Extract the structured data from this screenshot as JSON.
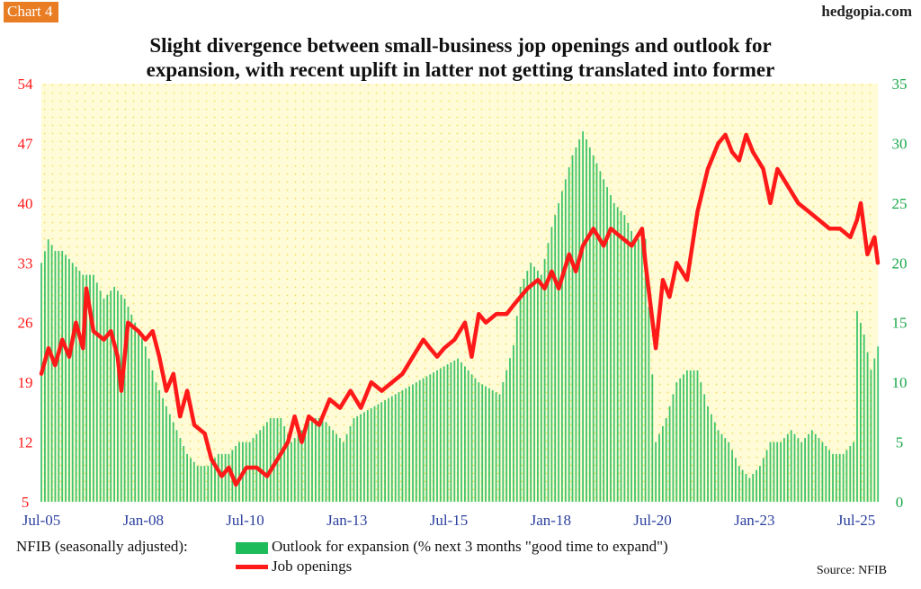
{
  "header": {
    "chart_label": "Chart 4",
    "site": "hedgopia.com",
    "title_line1": "Slight divergence between small-business jop openings and outlook for",
    "title_line2": "expansion, with recent uplift in latter not getting translated into former"
  },
  "legend": {
    "lead": "NFIB (seasonally adjusted):",
    "bar_label": "Outlook for expansion (% next 3 months \"good time to expand\")",
    "line_label": "Job openings"
  },
  "source": "Source: NFIB",
  "colors": {
    "bar": "#1dbb5a",
    "line": "#ff1a1a",
    "left_axis": "#ff1a1a",
    "right_axis": "#1aa84a",
    "plot_bg": "#fffbd6",
    "dots": "#f2df5a"
  },
  "chart_data": {
    "type": "bar+line",
    "x_start": "2005-07",
    "x_end": "2025-07",
    "x_ticks": [
      "Jul-05",
      "Jan-08",
      "Jul-10",
      "Jan-13",
      "Jul-15",
      "Jan-18",
      "Jul-20",
      "Jan-23",
      "Jul-25"
    ],
    "left_axis": {
      "label": "Job openings",
      "min": 5,
      "max": 54,
      "ticks": [
        5,
        12,
        19,
        26,
        33,
        40,
        47,
        54
      ]
    },
    "right_axis": {
      "label": "Outlook for expansion",
      "min": 0,
      "max": 35,
      "ticks": [
        0,
        5,
        10,
        15,
        20,
        25,
        30,
        35
      ]
    },
    "series": [
      {
        "name": "Outlook for expansion (% next 3 months \"good time to expand\")",
        "type": "bar",
        "axis": "right",
        "anchors": [
          [
            2005.5,
            20
          ],
          [
            2005.67,
            22
          ],
          [
            2005.83,
            21
          ],
          [
            2006.0,
            21
          ],
          [
            2006.25,
            20
          ],
          [
            2006.5,
            19
          ],
          [
            2006.75,
            19
          ],
          [
            2007.0,
            17
          ],
          [
            2007.25,
            18
          ],
          [
            2007.5,
            17
          ],
          [
            2007.75,
            15
          ],
          [
            2008.0,
            13
          ],
          [
            2008.25,
            10
          ],
          [
            2008.5,
            8
          ],
          [
            2008.75,
            6
          ],
          [
            2009.0,
            4
          ],
          [
            2009.25,
            3
          ],
          [
            2009.5,
            3
          ],
          [
            2009.75,
            4
          ],
          [
            2010.0,
            4
          ],
          [
            2010.25,
            5
          ],
          [
            2010.5,
            5
          ],
          [
            2010.75,
            6
          ],
          [
            2011.0,
            7
          ],
          [
            2011.25,
            7
          ],
          [
            2011.5,
            5
          ],
          [
            2011.75,
            6
          ],
          [
            2012.0,
            7
          ],
          [
            2012.25,
            7
          ],
          [
            2012.5,
            6
          ],
          [
            2012.75,
            5
          ],
          [
            2013.0,
            7
          ],
          [
            2013.5,
            8
          ],
          [
            2014.0,
            9
          ],
          [
            2014.5,
            10
          ],
          [
            2015.0,
            11
          ],
          [
            2015.5,
            12
          ],
          [
            2016.0,
            10
          ],
          [
            2016.5,
            9
          ],
          [
            2016.83,
            13
          ],
          [
            2017.0,
            18
          ],
          [
            2017.25,
            20
          ],
          [
            2017.5,
            19
          ],
          [
            2017.75,
            23
          ],
          [
            2018.0,
            26
          ],
          [
            2018.25,
            29
          ],
          [
            2018.5,
            31
          ],
          [
            2018.75,
            29
          ],
          [
            2019.0,
            27
          ],
          [
            2019.25,
            25
          ],
          [
            2019.5,
            24
          ],
          [
            2019.75,
            22
          ],
          [
            2020.0,
            22
          ],
          [
            2020.25,
            5
          ],
          [
            2020.5,
            7
          ],
          [
            2020.75,
            10
          ],
          [
            2021.0,
            11
          ],
          [
            2021.25,
            11
          ],
          [
            2021.5,
            8
          ],
          [
            2021.75,
            6
          ],
          [
            2022.0,
            5
          ],
          [
            2022.25,
            3
          ],
          [
            2022.5,
            2
          ],
          [
            2022.75,
            3
          ],
          [
            2023.0,
            5
          ],
          [
            2023.25,
            5
          ],
          [
            2023.5,
            6
          ],
          [
            2023.75,
            5
          ],
          [
            2024.0,
            6
          ],
          [
            2024.25,
            5
          ],
          [
            2024.5,
            4
          ],
          [
            2024.75,
            4
          ],
          [
            2025.0,
            5
          ],
          [
            2025.08,
            16
          ],
          [
            2025.25,
            14
          ],
          [
            2025.42,
            11
          ],
          [
            2025.58,
            13
          ]
        ]
      },
      {
        "name": "Job openings",
        "type": "line",
        "axis": "left",
        "anchors": [
          [
            2005.5,
            20
          ],
          [
            2005.67,
            23
          ],
          [
            2005.83,
            21
          ],
          [
            2006.0,
            24
          ],
          [
            2006.17,
            22
          ],
          [
            2006.33,
            26
          ],
          [
            2006.5,
            23
          ],
          [
            2006.58,
            30
          ],
          [
            2006.75,
            25
          ],
          [
            2007.0,
            24
          ],
          [
            2007.17,
            25
          ],
          [
            2007.33,
            22
          ],
          [
            2007.42,
            18
          ],
          [
            2007.58,
            26
          ],
          [
            2007.83,
            25
          ],
          [
            2008.0,
            24
          ],
          [
            2008.17,
            25
          ],
          [
            2008.33,
            22
          ],
          [
            2008.5,
            18
          ],
          [
            2008.67,
            20
          ],
          [
            2008.83,
            15
          ],
          [
            2009.0,
            18
          ],
          [
            2009.17,
            14
          ],
          [
            2009.42,
            13
          ],
          [
            2009.58,
            10
          ],
          [
            2009.83,
            8
          ],
          [
            2010.0,
            9
          ],
          [
            2010.17,
            7
          ],
          [
            2010.42,
            9
          ],
          [
            2010.67,
            9
          ],
          [
            2010.92,
            8
          ],
          [
            2011.17,
            10
          ],
          [
            2011.42,
            12
          ],
          [
            2011.58,
            15
          ],
          [
            2011.75,
            12
          ],
          [
            2011.92,
            15
          ],
          [
            2012.17,
            14
          ],
          [
            2012.42,
            17
          ],
          [
            2012.67,
            16
          ],
          [
            2012.92,
            18
          ],
          [
            2013.17,
            16
          ],
          [
            2013.42,
            19
          ],
          [
            2013.67,
            18
          ],
          [
            2013.92,
            19
          ],
          [
            2014.17,
            20
          ],
          [
            2014.42,
            22
          ],
          [
            2014.67,
            24
          ],
          [
            2014.83,
            23
          ],
          [
            2015.0,
            22
          ],
          [
            2015.17,
            23
          ],
          [
            2015.42,
            24
          ],
          [
            2015.67,
            26
          ],
          [
            2015.83,
            22
          ],
          [
            2016.0,
            27
          ],
          [
            2016.17,
            26
          ],
          [
            2016.42,
            27
          ],
          [
            2016.67,
            27
          ],
          [
            2016.83,
            28
          ],
          [
            2017.0,
            29
          ],
          [
            2017.17,
            30
          ],
          [
            2017.42,
            31
          ],
          [
            2017.58,
            30
          ],
          [
            2017.75,
            32
          ],
          [
            2017.92,
            30
          ],
          [
            2018.17,
            34
          ],
          [
            2018.33,
            32
          ],
          [
            2018.5,
            35
          ],
          [
            2018.75,
            37
          ],
          [
            2019.0,
            35
          ],
          [
            2019.17,
            37
          ],
          [
            2019.42,
            36
          ],
          [
            2019.67,
            35
          ],
          [
            2019.92,
            37
          ],
          [
            2020.0,
            33
          ],
          [
            2020.25,
            23
          ],
          [
            2020.42,
            31
          ],
          [
            2020.58,
            29
          ],
          [
            2020.75,
            33
          ],
          [
            2021.0,
            31
          ],
          [
            2021.25,
            39
          ],
          [
            2021.5,
            44
          ],
          [
            2021.75,
            47
          ],
          [
            2021.92,
            48
          ],
          [
            2022.08,
            46
          ],
          [
            2022.25,
            45
          ],
          [
            2022.42,
            48
          ],
          [
            2022.58,
            46
          ],
          [
            2022.83,
            44
          ],
          [
            2023.0,
            40
          ],
          [
            2023.17,
            44
          ],
          [
            2023.42,
            42
          ],
          [
            2023.67,
            40
          ],
          [
            2023.92,
            39
          ],
          [
            2024.17,
            38
          ],
          [
            2024.42,
            37
          ],
          [
            2024.67,
            37
          ],
          [
            2024.92,
            36
          ],
          [
            2025.08,
            38
          ],
          [
            2025.17,
            40
          ],
          [
            2025.33,
            34
          ],
          [
            2025.5,
            36
          ],
          [
            2025.58,
            33
          ]
        ]
      }
    ]
  }
}
